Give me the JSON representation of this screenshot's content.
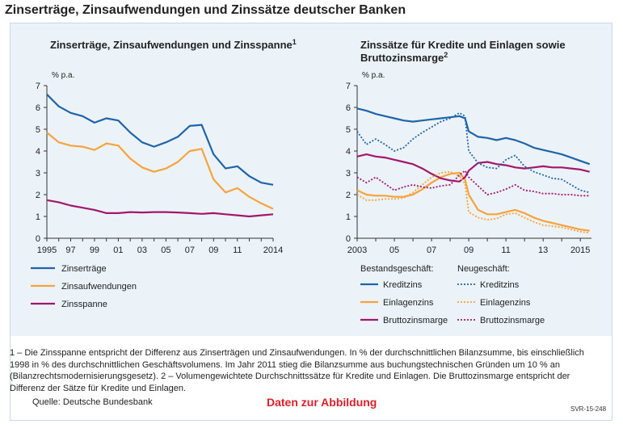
{
  "page": {
    "title": "Zinserträge, Zinsaufwendungen und Zinssätze deutscher Banken",
    "footnote": "1 – Die Zinsspanne entspricht der Differenz aus Zinserträgen und Zinsaufwendungen. In % der durchschnittlichen Bilanzsumme, bis einschließlich 1998 in % des durchschnittlichen Geschäftsvolumens. Im Jahr 2011 stieg die Bilanzsumme aus buchungstechnischen Gründen um 10 % an (Bilanzrechtsmodernisierungsgesetz).  2 – Volumengewichtete Durchschnittssätze für Kredite und Einlagen. Die Bruttozinsmarge entspricht der Differenz der Sätze für Kredite und Einlagen.",
    "source": "Quelle: Deutsche Bundesbank",
    "link": "Daten zur Abbildung",
    "code": "SVR-15-248"
  },
  "colors": {
    "blue": "#1f64a8",
    "orange": "#f7a23c",
    "purple": "#a3176b"
  },
  "chart_data": [
    {
      "type": "line",
      "title": "Zinserträge, Zinsaufwendungen und Zinsspanne",
      "title_sup": "1",
      "ylabel": "% p.a.",
      "ylim": [
        0,
        7
      ],
      "xlim": [
        1995,
        2014
      ],
      "yticks": [
        "0",
        "1",
        "2",
        "3",
        "4",
        "5",
        "6",
        "7"
      ],
      "xticks": [
        {
          "x": 1995,
          "label": "1995"
        },
        {
          "x": 1997,
          "label": "97"
        },
        {
          "x": 1999,
          "label": "99"
        },
        {
          "x": 2001,
          "label": "01"
        },
        {
          "x": 2003,
          "label": "03"
        },
        {
          "x": 2005,
          "label": "05"
        },
        {
          "x": 2007,
          "label": "07"
        },
        {
          "x": 2009,
          "label": "09"
        },
        {
          "x": 2011,
          "label": "11"
        },
        {
          "x": 2014,
          "label": "2014"
        }
      ],
      "x": [
        1995,
        1996,
        1997,
        1998,
        1999,
        2000,
        2001,
        2002,
        2003,
        2004,
        2005,
        2006,
        2007,
        2008,
        2009,
        2010,
        2011,
        2012,
        2013,
        2014
      ],
      "series": [
        {
          "name": "Zinserträge",
          "color": "blue",
          "values": [
            6.6,
            6.05,
            5.75,
            5.6,
            5.3,
            5.5,
            5.4,
            4.85,
            4.4,
            4.2,
            4.4,
            4.65,
            5.15,
            5.2,
            3.85,
            3.2,
            3.3,
            2.85,
            2.55,
            2.45
          ]
        },
        {
          "name": "Zinsaufwendungen",
          "color": "orange",
          "values": [
            4.85,
            4.4,
            4.25,
            4.2,
            4.05,
            4.35,
            4.25,
            3.65,
            3.25,
            3.05,
            3.2,
            3.5,
            4.0,
            4.1,
            2.7,
            2.1,
            2.3,
            1.9,
            1.6,
            1.35
          ]
        },
        {
          "name": "Zinsspanne",
          "color": "purple",
          "values": [
            1.75,
            1.65,
            1.5,
            1.4,
            1.3,
            1.15,
            1.15,
            1.2,
            1.18,
            1.2,
            1.2,
            1.18,
            1.15,
            1.12,
            1.15,
            1.1,
            1.05,
            1.0,
            1.05,
            1.1
          ]
        }
      ],
      "legend": [
        {
          "label": "Zinserträge",
          "color": "blue"
        },
        {
          "label": "Zinsaufwendungen",
          "color": "orange"
        },
        {
          "label": "Zinsspanne",
          "color": "purple"
        }
      ]
    },
    {
      "type": "line",
      "title_lines": [
        "Zinssätze für Kredite und Einlagen sowie",
        "Bruttozinsmarge"
      ],
      "title_sup": "2",
      "ylabel": "% p.a.",
      "ylim": [
        0,
        7
      ],
      "xlim": [
        2003.0,
        2015.6
      ],
      "yticks": [
        "0",
        "1",
        "2",
        "3",
        "4",
        "5",
        "6",
        "7"
      ],
      "xticks": [
        {
          "x": 2003,
          "label": "2003"
        },
        {
          "x": 2005,
          "label": "05"
        },
        {
          "x": 2007,
          "label": "07"
        },
        {
          "x": 2009,
          "label": "09"
        },
        {
          "x": 2011,
          "label": "11"
        },
        {
          "x": 2013,
          "label": "13"
        },
        {
          "x": 2015,
          "label": "2015"
        }
      ],
      "x": [
        2003.0,
        2003.5,
        2004.0,
        2004.5,
        2005.0,
        2005.5,
        2006.0,
        2006.5,
        2007.0,
        2007.5,
        2008.0,
        2008.5,
        2008.8,
        2009.0,
        2009.5,
        2010.0,
        2010.5,
        2011.0,
        2011.5,
        2012.0,
        2012.5,
        2013.0,
        2013.5,
        2014.0,
        2014.5,
        2015.0,
        2015.5
      ],
      "series": [
        {
          "name": "Kreditzins (Bestandsgeschäft)",
          "color": "blue",
          "dash": false,
          "values": [
            5.95,
            5.85,
            5.7,
            5.6,
            5.5,
            5.4,
            5.35,
            5.4,
            5.45,
            5.5,
            5.55,
            5.6,
            5.5,
            4.9,
            4.65,
            4.6,
            4.5,
            4.6,
            4.5,
            4.35,
            4.15,
            4.05,
            3.95,
            3.85,
            3.7,
            3.55,
            3.4
          ]
        },
        {
          "name": "Einlagenzins (Bestandsgeschäft)",
          "color": "orange",
          "dash": false,
          "values": [
            2.2,
            2.0,
            1.95,
            1.95,
            1.9,
            1.9,
            2.0,
            2.25,
            2.55,
            2.8,
            2.95,
            3.0,
            2.7,
            2.0,
            1.3,
            1.1,
            1.1,
            1.2,
            1.3,
            1.15,
            0.95,
            0.8,
            0.7,
            0.6,
            0.5,
            0.4,
            0.35
          ]
        },
        {
          "name": "Bruttozinsmarge (Bestandsgeschäft)",
          "color": "purple",
          "dash": false,
          "values": [
            3.75,
            3.85,
            3.75,
            3.7,
            3.6,
            3.5,
            3.4,
            3.2,
            2.95,
            2.75,
            2.65,
            2.6,
            2.8,
            3.1,
            3.45,
            3.5,
            3.4,
            3.35,
            3.25,
            3.2,
            3.25,
            3.3,
            3.25,
            3.25,
            3.2,
            3.15,
            3.05
          ]
        },
        {
          "name": "Kreditzins (Neugeschäft)",
          "color": "blue",
          "dash": true,
          "values": [
            4.9,
            4.3,
            4.55,
            4.3,
            4.0,
            4.15,
            4.55,
            4.85,
            5.1,
            5.35,
            5.5,
            5.75,
            5.6,
            4.0,
            3.45,
            3.25,
            3.2,
            3.6,
            3.8,
            3.3,
            3.05,
            2.9,
            2.75,
            2.7,
            2.45,
            2.2,
            2.1
          ]
        },
        {
          "name": "Einlagenzins (Neugeschäft)",
          "color": "orange",
          "dash": true,
          "values": [
            2.0,
            1.75,
            1.75,
            1.8,
            1.8,
            1.85,
            2.1,
            2.45,
            2.8,
            3.0,
            3.05,
            2.85,
            2.5,
            1.2,
            0.95,
            0.85,
            0.9,
            1.1,
            1.15,
            0.95,
            0.75,
            0.6,
            0.55,
            0.5,
            0.4,
            0.3,
            0.25
          ]
        },
        {
          "name": "Bruttozinsmarge (Neugeschäft)",
          "color": "purple",
          "dash": true,
          "values": [
            2.8,
            2.55,
            2.8,
            2.5,
            2.2,
            2.35,
            2.45,
            2.35,
            2.3,
            2.4,
            2.45,
            2.9,
            3.1,
            2.8,
            2.4,
            2.0,
            2.1,
            2.25,
            2.45,
            2.2,
            2.15,
            2.05,
            2.05,
            2.0,
            2.0,
            1.95,
            1.95
          ]
        }
      ],
      "legend_headers": [
        "Bestandsgeschäft:",
        "Neugeschäft:"
      ],
      "legend": [
        {
          "label": "Kreditzins",
          "color": "blue"
        },
        {
          "label": "Einlagenzins",
          "color": "orange"
        },
        {
          "label": "Bruttozinsmarge",
          "color": "purple"
        }
      ]
    }
  ]
}
